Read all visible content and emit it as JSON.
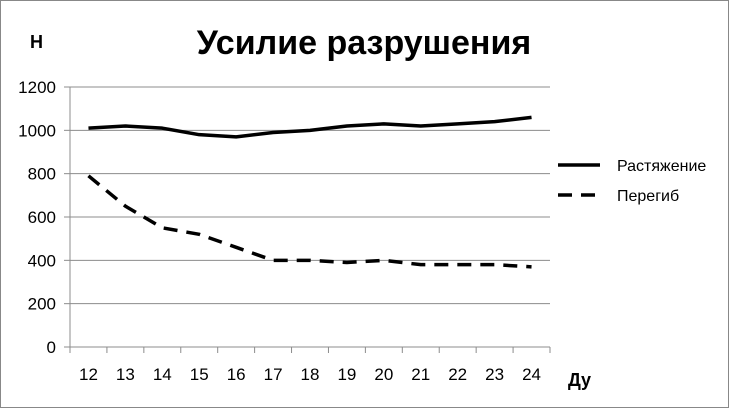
{
  "chart_data": {
    "type": "line",
    "title": "Усилие разрушения",
    "ylabel": "Н",
    "xlabel": "Ду",
    "x": [
      "12",
      "13",
      "14",
      "15",
      "16",
      "17",
      "18",
      "19",
      "20",
      "21",
      "22",
      "23",
      "24"
    ],
    "ylim": [
      0,
      1200
    ],
    "yticks": [
      0,
      200,
      400,
      600,
      800,
      1000,
      1200
    ],
    "grid": true,
    "legend_position": "right",
    "series": [
      {
        "name": "Растяжение",
        "style": "solid",
        "color": "#000000",
        "values": [
          1010,
          1020,
          1010,
          980,
          970,
          990,
          1000,
          1020,
          1030,
          1020,
          1030,
          1040,
          1060
        ]
      },
      {
        "name": "Перегиб",
        "style": "dashed",
        "color": "#000000",
        "values": [
          790,
          650,
          550,
          520,
          460,
          400,
          400,
          390,
          400,
          380,
          380,
          380,
          370
        ]
      }
    ]
  }
}
